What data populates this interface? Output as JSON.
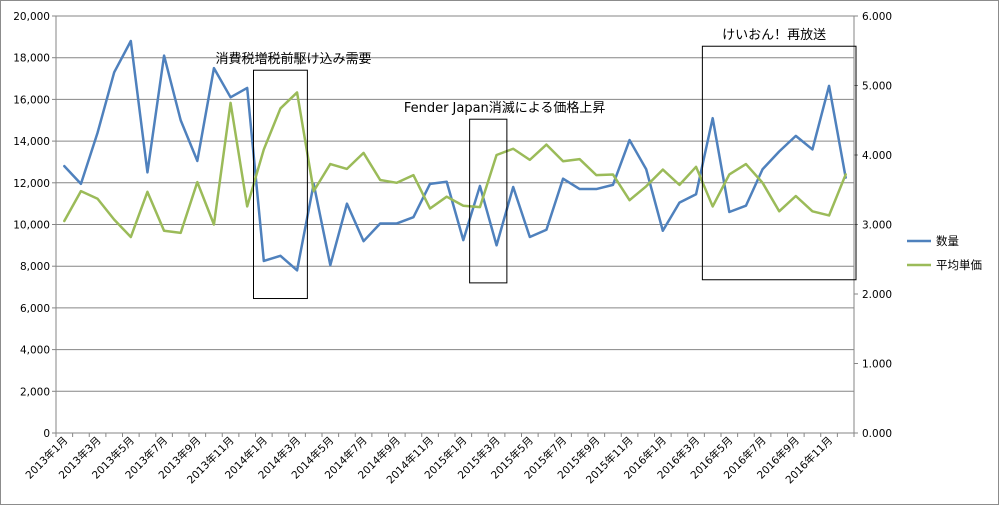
{
  "chart_data": {
    "type": "line",
    "title": "",
    "x": [
      "2013年1月",
      "2013年2月",
      "2013年3月",
      "2013年4月",
      "2013年5月",
      "2013年6月",
      "2013年7月",
      "2013年8月",
      "2013年9月",
      "2013年10月",
      "2013年11月",
      "2013年12月",
      "2014年1月",
      "2014年2月",
      "2014年3月",
      "2014年4月",
      "2014年5月",
      "2014年6月",
      "2014年7月",
      "2014年8月",
      "2014年9月",
      "2014年10月",
      "2014年11月",
      "2014年12月",
      "2015年1月",
      "2015年2月",
      "2015年3月",
      "2015年4月",
      "2015年5月",
      "2015年6月",
      "2015年7月",
      "2015年8月",
      "2015年9月",
      "2015年10月",
      "2015年11月",
      "2015年12月",
      "2016年1月",
      "2016年2月",
      "2016年3月",
      "2016年4月",
      "2016年5月",
      "2016年6月",
      "2016年7月",
      "2016年8月",
      "2016年9月",
      "2016年10月",
      "2016年11月",
      "2016年12月"
    ],
    "x_tick_labels": [
      "2013年1月",
      "2013年3月",
      "2013年5月",
      "2013年7月",
      "2013年9月",
      "2013年11月",
      "2014年1月",
      "2014年3月",
      "2014年5月",
      "2014年7月",
      "2014年9月",
      "2014年11月",
      "2015年1月",
      "2015年3月",
      "2015年5月",
      "2015年7月",
      "2015年9月",
      "2015年11月",
      "2016年1月",
      "2016年3月",
      "2016年5月",
      "2016年7月",
      "2016年9月",
      "2016年11月"
    ],
    "series": [
      {
        "name": "数量",
        "axis": "left",
        "color": "#4f81bd",
        "values": [
          12800,
          11950,
          14400,
          17300,
          18800,
          12500,
          18100,
          15000,
          13050,
          17500,
          16100,
          16550,
          8250,
          8500,
          7800,
          11950,
          8050,
          11000,
          9200,
          10050,
          10050,
          10350,
          11950,
          12050,
          9250,
          11850,
          9000,
          11800,
          9400,
          9750,
          12200,
          11700,
          11700,
          11900,
          14050,
          12650,
          9700,
          11050,
          11450,
          15100,
          10600,
          10900,
          12650,
          13500,
          14250,
          13600,
          16650,
          12250
        ]
      },
      {
        "name": "平均単価",
        "axis": "right",
        "color": "#9bbb59",
        "values": [
          3.05,
          3.48,
          3.37,
          3.07,
          2.82,
          3.47,
          2.91,
          2.88,
          3.61,
          3.0,
          4.75,
          3.26,
          4.08,
          4.67,
          4.9,
          3.48,
          3.87,
          3.8,
          4.03,
          3.64,
          3.6,
          3.71,
          3.23,
          3.4,
          3.27,
          3.25,
          4.0,
          4.09,
          3.93,
          4.15,
          3.91,
          3.94,
          3.71,
          3.72,
          3.35,
          3.55,
          3.79,
          3.57,
          3.83,
          3.26,
          3.72,
          3.87,
          3.6,
          3.19,
          3.41,
          3.19,
          3.13,
          3.72
        ]
      }
    ],
    "left_axis": {
      "min": 0,
      "max": 20000,
      "ticks": [
        "0",
        "2,000",
        "4,000",
        "6,000",
        "8,000",
        "10,000",
        "12,000",
        "14,000",
        "16,000",
        "18,000",
        "20,000"
      ]
    },
    "right_axis": {
      "min": 0,
      "max": 6,
      "ticks": [
        "0.000",
        "1.000",
        "2.000",
        "3.000",
        "4.000",
        "5.000",
        "6.000"
      ]
    },
    "grid": "horizontal",
    "legend_position": "right",
    "annotations": [
      {
        "text": "消費税増税前駆け込み需要",
        "from": "2014年1月",
        "to": "2014年3月",
        "y_top": 17400,
        "y_bottom": 6450
      },
      {
        "text": "Fender Japan消滅による価格上昇",
        "from": "2015年2月",
        "to": "2015年3月",
        "y_top": 15050,
        "y_bottom": 7200
      },
      {
        "text": "けいおん！再放送",
        "from": "2016年4月",
        "to": "2016年12月",
        "y_top": 18550,
        "y_bottom": 7350
      }
    ]
  }
}
